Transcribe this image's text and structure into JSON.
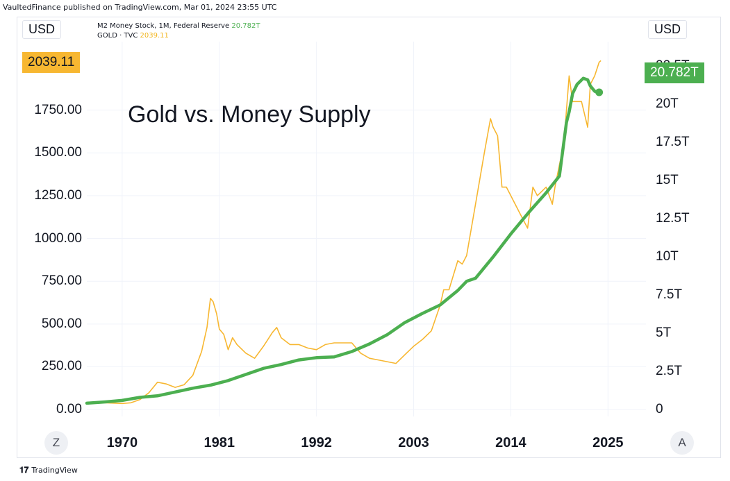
{
  "header": {
    "publisher_line": "VaultedFinance published on TradingView.com, Mar 01, 2024 23:55 UTC"
  },
  "axes_currency": {
    "left": "USD",
    "right": "USD"
  },
  "legend": {
    "m2_name": "M2 Money Stock, 1M, Federal Reserve",
    "m2_value": "20.782T",
    "gold_name": "GOLD · TVC",
    "gold_value": "2039.11"
  },
  "price_tags": {
    "gold": "2039.11",
    "m2": "20.782T"
  },
  "scale_buttons": {
    "left": "Z",
    "right": "A"
  },
  "footer": {
    "brand": "TradingView"
  },
  "colors": {
    "gold": "#f7b731",
    "m2": "#4caf50",
    "grid": "#f0f3fa"
  },
  "chart_data": {
    "type": "line",
    "title": "Gold vs. Money Supply",
    "x_ticks": [
      "1970",
      "1981",
      "1992",
      "2003",
      "2014",
      "2025"
    ],
    "x_tick_years": [
      1970,
      1981,
      1992,
      2003,
      2014,
      2025
    ],
    "xlim": [
      1966,
      2029.3
    ],
    "left_axis": {
      "ticks": [
        "0.00",
        "250.00",
        "500.00",
        "750.00",
        "1000.00",
        "1250.00",
        "1500.00",
        "1750.00"
      ],
      "tick_values": [
        0,
        250,
        500,
        750,
        1000,
        1250,
        1500,
        1750
      ],
      "ylim": [
        -40,
        2150
      ]
    },
    "right_axis": {
      "ticks": [
        "0",
        "2.5T",
        "5T",
        "7.5T",
        "10T",
        "12.5T",
        "15T",
        "17.5T",
        "20T",
        "22.5T"
      ],
      "tick_values": [
        0,
        2.5,
        5,
        7.5,
        10,
        12.5,
        15,
        17.5,
        20,
        22.5
      ],
      "ylim": [
        -0.45,
        24.1
      ]
    },
    "series": [
      {
        "name": "GOLD · TVC",
        "axis": "left",
        "x": [
          1968,
          1970,
          1971,
          1972,
          1973,
          1974,
          1975,
          1976,
          1977,
          1978,
          1979,
          1979.6,
          1980.0,
          1980.3,
          1980.7,
          1981.0,
          1981.5,
          1982,
          1982.5,
          1983,
          1984,
          1985,
          1986,
          1987,
          1987.5,
          1988,
          1989,
          1990,
          1991,
          1992,
          1993,
          1994,
          1995,
          1996,
          1997,
          1998,
          1999,
          2000,
          2001,
          2002,
          2003,
          2004,
          2005,
          2006,
          2006.4,
          2007,
          2008,
          2008.5,
          2009,
          2010,
          2011,
          2011.7,
          2012,
          2012.5,
          2013,
          2013.5,
          2014,
          2015,
          2015.9,
          2016.5,
          2017,
          2018,
          2018.7,
          2019,
          2019.5,
          2020,
          2020.6,
          2021,
          2021.5,
          2022,
          2022.7,
          2023,
          2023.5,
          2024,
          2024.2
        ],
        "y": [
          40,
          36,
          40,
          58,
          97,
          160,
          150,
          130,
          145,
          200,
          340,
          480,
          650,
          630,
          560,
          470,
          440,
          350,
          420,
          380,
          330,
          300,
          370,
          450,
          480,
          420,
          380,
          380,
          360,
          350,
          380,
          390,
          390,
          390,
          330,
          300,
          290,
          280,
          270,
          320,
          370,
          410,
          460,
          610,
          700,
          700,
          870,
          850,
          900,
          1200,
          1500,
          1700,
          1650,
          1600,
          1300,
          1300,
          1250,
          1150,
          1060,
          1300,
          1250,
          1300,
          1200,
          1300,
          1430,
          1550,
          1950,
          1800,
          1800,
          1800,
          1650,
          1900,
          1950,
          2030,
          2039
        ]
      },
      {
        "name": "M2 Money Stock",
        "axis": "right",
        "x": [
          1966,
          1968,
          1970,
          1972,
          1974,
          1976,
          1978,
          1980,
          1982,
          1984,
          1986,
          1988,
          1990,
          1992,
          1994,
          1996,
          1998,
          2000,
          2002,
          2004,
          2006,
          2008,
          2009,
          2010,
          2012,
          2014,
          2016,
          2018,
          2019.5,
          2020.3,
          2020.6,
          2021,
          2021.5,
          2022.2,
          2022.7,
          2023,
          2023.5,
          2024
        ],
        "y": [
          0.42,
          0.5,
          0.6,
          0.8,
          0.9,
          1.15,
          1.4,
          1.6,
          1.9,
          2.3,
          2.7,
          2.95,
          3.25,
          3.4,
          3.45,
          3.8,
          4.3,
          4.9,
          5.7,
          6.3,
          6.85,
          7.8,
          8.4,
          8.6,
          10.0,
          11.5,
          12.9,
          14.2,
          15.3,
          18.8,
          19.5,
          20.7,
          21.3,
          21.7,
          21.6,
          21.2,
          20.85,
          20.78
        ]
      }
    ]
  }
}
